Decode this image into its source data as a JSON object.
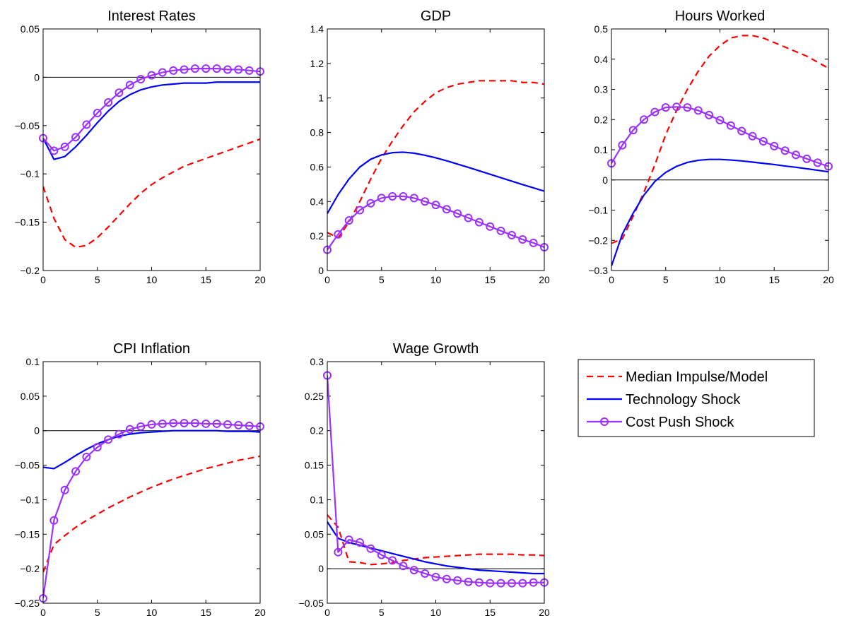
{
  "figure": {
    "colors": {
      "median": "#ff0000",
      "technology": "#0000ff",
      "cost_push": "#9b30ff",
      "axes": "#000000",
      "background": "#ffffff"
    }
  },
  "legend": {
    "placement": "right of bottom row",
    "entries": [
      {
        "key": "median",
        "label": "Median Impulse/Model",
        "style": "dashed",
        "marker": "none"
      },
      {
        "key": "technology",
        "label": "Technology Shock",
        "style": "solid",
        "marker": "none"
      },
      {
        "key": "cost_push",
        "label": "Cost Push Shock",
        "style": "solid",
        "marker": "circle"
      }
    ]
  },
  "chart_data": [
    {
      "type": "line",
      "title": "Interest Rates",
      "xlabel": "",
      "ylabel": "",
      "xlim": [
        0,
        20
      ],
      "ylim": [
        -0.2,
        0.05
      ],
      "xticks": [
        0,
        5,
        10,
        15,
        20
      ],
      "yticks": [
        -0.2,
        -0.15,
        -0.1,
        -0.05,
        0,
        0.05
      ],
      "ytick_labels": [
        "−0.2",
        "−0.15",
        "−0.1",
        "−0.05",
        "0",
        "0.05"
      ],
      "zero_line": true,
      "grid": false,
      "x": [
        0,
        1,
        2,
        3,
        4,
        5,
        6,
        7,
        8,
        9,
        10,
        11,
        12,
        13,
        14,
        15,
        16,
        17,
        18,
        19,
        20
      ],
      "series": [
        {
          "name": "Median Impulse/Model",
          "key": "median",
          "values": [
            -0.113,
            -0.146,
            -0.168,
            -0.176,
            -0.174,
            -0.166,
            -0.155,
            -0.143,
            -0.131,
            -0.12,
            -0.111,
            -0.104,
            -0.098,
            -0.092,
            -0.088,
            -0.084,
            -0.08,
            -0.076,
            -0.072,
            -0.068,
            -0.064
          ]
        },
        {
          "name": "Technology Shock",
          "key": "technology",
          "values": [
            -0.063,
            -0.085,
            -0.082,
            -0.072,
            -0.06,
            -0.047,
            -0.035,
            -0.025,
            -0.018,
            -0.013,
            -0.01,
            -0.008,
            -0.007,
            -0.006,
            -0.006,
            -0.006,
            -0.005,
            -0.005,
            -0.005,
            -0.005,
            -0.005
          ]
        },
        {
          "name": "Cost Push Shock",
          "key": "cost_push",
          "values": [
            -0.063,
            -0.076,
            -0.072,
            -0.062,
            -0.049,
            -0.037,
            -0.026,
            -0.016,
            -0.008,
            -0.002,
            0.002,
            0.005,
            0.007,
            0.008,
            0.009,
            0.009,
            0.009,
            0.008,
            0.008,
            0.007,
            0.006
          ]
        }
      ]
    },
    {
      "type": "line",
      "title": "GDP",
      "xlabel": "",
      "ylabel": "",
      "xlim": [
        0,
        20
      ],
      "ylim": [
        0,
        1.4
      ],
      "xticks": [
        0,
        5,
        10,
        15,
        20
      ],
      "yticks": [
        0,
        0.2,
        0.4,
        0.6,
        0.8,
        1,
        1.2,
        1.4
      ],
      "ytick_labels": [
        "0",
        "0.2",
        "0.4",
        "0.6",
        "0.8",
        "1",
        "1.2",
        "1.4"
      ],
      "zero_line": false,
      "grid": false,
      "x": [
        0,
        1,
        2,
        3,
        4,
        5,
        6,
        7,
        8,
        9,
        10,
        11,
        12,
        13,
        14,
        15,
        16,
        17,
        18,
        19,
        20
      ],
      "series": [
        {
          "name": "Median Impulse/Model",
          "key": "median",
          "values": [
            0.22,
            0.19,
            0.28,
            0.4,
            0.53,
            0.65,
            0.75,
            0.84,
            0.92,
            0.98,
            1.03,
            1.06,
            1.08,
            1.09,
            1.1,
            1.1,
            1.1,
            1.1,
            1.09,
            1.09,
            1.08
          ]
        },
        {
          "name": "Technology Shock",
          "key": "technology",
          "values": [
            0.33,
            0.44,
            0.53,
            0.6,
            0.645,
            0.67,
            0.683,
            0.686,
            0.68,
            0.668,
            0.653,
            0.636,
            0.617,
            0.598,
            0.578,
            0.558,
            0.538,
            0.518,
            0.498,
            0.479,
            0.46
          ]
        },
        {
          "name": "Cost Push Shock",
          "key": "cost_push",
          "values": [
            0.12,
            0.21,
            0.29,
            0.35,
            0.39,
            0.42,
            0.43,
            0.43,
            0.42,
            0.4,
            0.38,
            0.355,
            0.33,
            0.305,
            0.28,
            0.255,
            0.23,
            0.205,
            0.18,
            0.16,
            0.135
          ]
        }
      ]
    },
    {
      "type": "line",
      "title": "Hours Worked",
      "xlabel": "",
      "ylabel": "",
      "xlim": [
        0,
        20
      ],
      "ylim": [
        -0.3,
        0.5
      ],
      "xticks": [
        0,
        5,
        10,
        15,
        20
      ],
      "yticks": [
        -0.3,
        -0.2,
        -0.1,
        0,
        0.1,
        0.2,
        0.3,
        0.4,
        0.5
      ],
      "ytick_labels": [
        "−0.3",
        "−0.2",
        "−0.1",
        "0",
        "0.1",
        "0.2",
        "0.3",
        "0.4",
        "0.5"
      ],
      "zero_line": true,
      "grid": false,
      "x": [
        0,
        1,
        2,
        3,
        4,
        5,
        6,
        7,
        8,
        9,
        10,
        11,
        12,
        13,
        14,
        15,
        16,
        17,
        18,
        19,
        20
      ],
      "series": [
        {
          "name": "Median Impulse/Model",
          "key": "median",
          "values": [
            -0.21,
            -0.195,
            -0.12,
            -0.04,
            0.05,
            0.15,
            0.23,
            0.3,
            0.36,
            0.41,
            0.445,
            0.47,
            0.478,
            0.478,
            0.47,
            0.455,
            0.44,
            0.425,
            0.41,
            0.39,
            0.37
          ]
        },
        {
          "name": "Technology Shock",
          "key": "technology",
          "values": [
            -0.285,
            -0.18,
            -0.11,
            -0.05,
            -0.005,
            0.025,
            0.045,
            0.058,
            0.065,
            0.068,
            0.068,
            0.066,
            0.063,
            0.059,
            0.055,
            0.051,
            0.046,
            0.042,
            0.037,
            0.032,
            0.027
          ]
        },
        {
          "name": "Cost Push Shock",
          "key": "cost_push",
          "values": [
            0.055,
            0.115,
            0.165,
            0.2,
            0.225,
            0.24,
            0.242,
            0.24,
            0.23,
            0.215,
            0.198,
            0.18,
            0.162,
            0.145,
            0.128,
            0.112,
            0.097,
            0.083,
            0.07,
            0.057,
            0.045
          ]
        }
      ]
    },
    {
      "type": "line",
      "title": "CPI Inflation",
      "xlabel": "",
      "ylabel": "",
      "xlim": [
        0,
        20
      ],
      "ylim": [
        -0.25,
        0.1
      ],
      "xticks": [
        0,
        5,
        10,
        15,
        20
      ],
      "yticks": [
        -0.25,
        -0.2,
        -0.15,
        -0.1,
        -0.05,
        0,
        0.05,
        0.1
      ],
      "ytick_labels": [
        "−0.25",
        "−0.2",
        "−0.15",
        "−0.1",
        "−0.05",
        "0",
        "0.05",
        "0.1"
      ],
      "zero_line": true,
      "grid": false,
      "x": [
        0,
        1,
        2,
        3,
        4,
        5,
        6,
        7,
        8,
        9,
        10,
        11,
        12,
        13,
        14,
        15,
        16,
        17,
        18,
        19,
        20
      ],
      "series": [
        {
          "name": "Median Impulse/Model",
          "key": "median",
          "values": [
            -0.205,
            -0.165,
            -0.152,
            -0.14,
            -0.13,
            -0.121,
            -0.112,
            -0.104,
            -0.096,
            -0.089,
            -0.082,
            -0.076,
            -0.07,
            -0.065,
            -0.06,
            -0.055,
            -0.051,
            -0.047,
            -0.043,
            -0.04,
            -0.037
          ]
        },
        {
          "name": "Technology Shock",
          "key": "technology",
          "values": [
            -0.053,
            -0.055,
            -0.046,
            -0.036,
            -0.027,
            -0.019,
            -0.013,
            -0.008,
            -0.005,
            -0.003,
            -0.002,
            -0.001,
            0.0,
            0.0,
            0.0,
            0.0,
            0.0,
            -0.001,
            -0.001,
            -0.001,
            -0.002
          ]
        },
        {
          "name": "Cost Push Shock",
          "key": "cost_push",
          "values": [
            -0.243,
            -0.13,
            -0.086,
            -0.059,
            -0.038,
            -0.024,
            -0.013,
            -0.005,
            0.002,
            0.006,
            0.009,
            0.01,
            0.011,
            0.011,
            0.011,
            0.01,
            0.01,
            0.009,
            0.008,
            0.007,
            0.006
          ]
        }
      ]
    },
    {
      "type": "line",
      "title": "Wage Growth",
      "xlabel": "",
      "ylabel": "",
      "xlim": [
        0,
        20
      ],
      "ylim": [
        -0.05,
        0.3
      ],
      "xticks": [
        0,
        5,
        10,
        15,
        20
      ],
      "yticks": [
        -0.05,
        0,
        0.05,
        0.1,
        0.15,
        0.2,
        0.25,
        0.3
      ],
      "ytick_labels": [
        "−0.05",
        "0",
        "0.05",
        "0.1",
        "0.15",
        "0.2",
        "0.25",
        "0.3"
      ],
      "zero_line": true,
      "grid": false,
      "x": [
        0,
        1,
        2,
        3,
        4,
        5,
        6,
        7,
        8,
        9,
        10,
        11,
        12,
        13,
        14,
        15,
        16,
        17,
        18,
        19,
        20
      ],
      "series": [
        {
          "name": "Median Impulse/Model",
          "key": "median",
          "values": [
            0.078,
            0.06,
            0.01,
            0.009,
            0.006,
            0.007,
            0.009,
            0.012,
            0.014,
            0.016,
            0.017,
            0.018,
            0.019,
            0.02,
            0.021,
            0.021,
            0.021,
            0.021,
            0.02,
            0.02,
            0.019
          ]
        },
        {
          "name": "Technology Shock",
          "key": "technology",
          "values": [
            0.068,
            0.044,
            0.038,
            0.034,
            0.03,
            0.026,
            0.022,
            0.018,
            0.014,
            0.01,
            0.007,
            0.004,
            0.002,
            0.0,
            -0.002,
            -0.003,
            -0.004,
            -0.005,
            -0.006,
            -0.007,
            -0.007
          ]
        },
        {
          "name": "Cost Push Shock",
          "key": "cost_push",
          "values": [
            0.28,
            0.024,
            0.042,
            0.038,
            0.029,
            0.02,
            0.012,
            0.004,
            -0.002,
            -0.007,
            -0.012,
            -0.015,
            -0.017,
            -0.019,
            -0.02,
            -0.021,
            -0.021,
            -0.021,
            -0.021,
            -0.02,
            -0.02
          ]
        }
      ]
    }
  ]
}
